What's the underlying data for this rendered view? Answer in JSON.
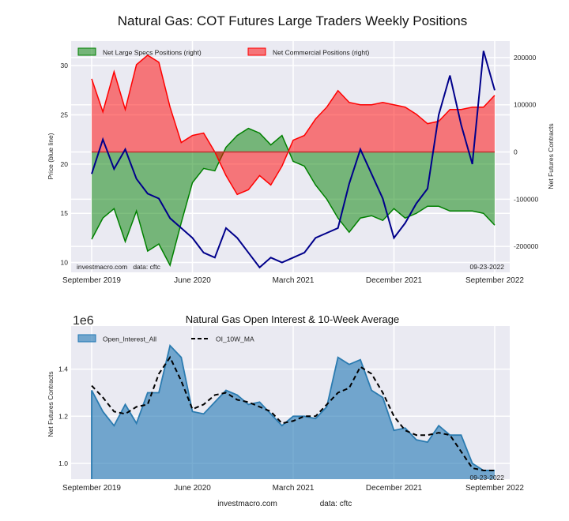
{
  "chart_data": [
    {
      "type": "area",
      "title": "Natural Gas: COT Futures Large Traders Weekly Positions",
      "ylabel": "Price (blue line)",
      "ylabel_right": "Net Futures Contracts",
      "ylim": [
        9,
        32.5
      ],
      "ylim_right": [
        -255000,
        235000
      ],
      "yticks": [
        "10",
        "15",
        "20",
        "25",
        "30"
      ],
      "yticks_right": [
        "-200000",
        "-100000",
        "0",
        "100000",
        "200000"
      ],
      "xticks": [
        "September 2019",
        "June 2020",
        "March 2021",
        "December 2021",
        "September 2022"
      ],
      "grid": true,
      "legend_position": "top-left",
      "watermark": "investmacro.com   data: cftc",
      "date_stamp": "09-23-2022",
      "x": [
        "2019-09",
        "2019-10",
        "2019-11",
        "2019-12",
        "2020-01",
        "2020-02",
        "2020-03",
        "2020-04",
        "2020-05",
        "2020-06",
        "2020-07",
        "2020-08",
        "2020-09",
        "2020-10",
        "2020-11",
        "2020-12",
        "2021-01",
        "2021-02",
        "2021-03",
        "2021-04",
        "2021-05",
        "2021-06",
        "2021-07",
        "2021-08",
        "2021-09",
        "2021-10",
        "2021-11",
        "2021-12",
        "2022-01",
        "2022-02",
        "2022-03",
        "2022-04",
        "2022-05",
        "2022-06",
        "2022-07",
        "2022-08",
        "2022-09"
      ],
      "series": [
        {
          "name": "Net Large Specs Positions (right)",
          "color": "#008000",
          "axis": "right",
          "values": [
            -185000,
            -140000,
            -120000,
            -190000,
            -125000,
            -210000,
            -195000,
            -240000,
            -150000,
            -65000,
            -35000,
            -40000,
            10000,
            35000,
            50000,
            40000,
            15000,
            35000,
            -20000,
            -30000,
            -70000,
            -100000,
            -140000,
            -170000,
            -140000,
            -135000,
            -145000,
            -120000,
            -140000,
            -130000,
            -115000,
            -115000,
            -125000,
            -125000,
            -125000,
            -130000,
            -155000
          ]
        },
        {
          "name": "Net Commercial Positions (right)",
          "color": "#ff0000",
          "axis": "right",
          "values": [
            155000,
            85000,
            170000,
            90000,
            185000,
            205000,
            190000,
            95000,
            20000,
            35000,
            40000,
            0,
            -50000,
            -90000,
            -80000,
            -50000,
            -70000,
            -30000,
            25000,
            35000,
            70000,
            95000,
            130000,
            105000,
            100000,
            100000,
            105000,
            100000,
            95000,
            80000,
            60000,
            65000,
            90000,
            90000,
            95000,
            95000,
            120000
          ]
        },
        {
          "color": "#00008b",
          "axis": "left",
          "values": [
            19,
            22.5,
            19.5,
            21.5,
            18.5,
            17,
            16.5,
            14.5,
            13.5,
            12.5,
            11,
            10.5,
            13.5,
            12.5,
            11,
            9.5,
            10.5,
            10,
            10.5,
            11,
            12.5,
            13,
            13.5,
            18,
            21.5,
            19,
            16.5,
            12.5,
            14,
            16,
            17.5,
            25,
            29,
            24,
            20,
            31.5,
            27.5
          ]
        }
      ]
    },
    {
      "type": "area",
      "title": "Natural Gas Open Interest & 10-Week Average",
      "ylabel": "Net Futures Contracts",
      "scale_label": "1e6",
      "ylim": [
        0.933,
        1.583
      ],
      "yticks": [
        "1.0",
        "1.2",
        "1.4"
      ],
      "xticks": [
        "September 2019",
        "June 2020",
        "March 2021",
        "December 2021",
        "September 2022"
      ],
      "grid": true,
      "legend_position": "top-left",
      "date_stamp": "09-23-2022",
      "footer": {
        "site": "investmacro.com",
        "source": "data: cftc"
      },
      "series": [
        {
          "name": "Open_Interest_All",
          "color": "#1f77b4",
          "values": [
            1.31,
            1.22,
            1.16,
            1.25,
            1.17,
            1.3,
            1.3,
            1.5,
            1.45,
            1.22,
            1.21,
            1.26,
            1.31,
            1.29,
            1.25,
            1.26,
            1.21,
            1.16,
            1.2,
            1.2,
            1.19,
            1.24,
            1.45,
            1.42,
            1.44,
            1.31,
            1.28,
            1.14,
            1.15,
            1.1,
            1.09,
            1.16,
            1.12,
            1.12,
            1.0,
            0.97,
            0.97
          ]
        },
        {
          "name": "OI_10W_MA",
          "color": "#000000",
          "style": "dashed",
          "values": [
            1.33,
            1.28,
            1.22,
            1.21,
            1.24,
            1.25,
            1.38,
            1.45,
            1.35,
            1.23,
            1.25,
            1.29,
            1.3,
            1.27,
            1.26,
            1.24,
            1.22,
            1.17,
            1.18,
            1.2,
            1.2,
            1.25,
            1.3,
            1.32,
            1.41,
            1.38,
            1.3,
            1.2,
            1.14,
            1.12,
            1.12,
            1.13,
            1.12,
            1.05,
            0.98,
            0.97,
            0.97
          ]
        }
      ]
    }
  ]
}
